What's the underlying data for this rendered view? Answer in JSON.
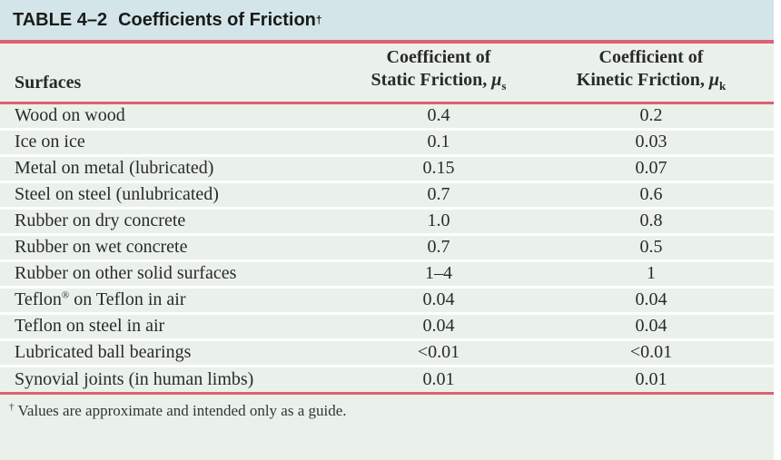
{
  "colors": {
    "title_bg": "#d3e5e8",
    "body_bg": "#eaf1ea",
    "rule": "#df6170",
    "separator": "#ffffff",
    "text": "#2a2a2a"
  },
  "title": {
    "label": "TABLE 4–2",
    "text": "Coefficients of Friction",
    "dagger": "†"
  },
  "header": {
    "surfaces": "Surfaces",
    "static": {
      "line1": "Coefficient of",
      "line2": "Static Friction, ",
      "symbol": "μ",
      "subscript": "s"
    },
    "kinetic": {
      "line1": "Coefficient of",
      "line2": "Kinetic Friction, ",
      "symbol": "μ",
      "subscript": "k"
    }
  },
  "rows": [
    {
      "surface": "Wood on wood",
      "static": "0.4",
      "kinetic": "0.2"
    },
    {
      "surface": "Ice on ice",
      "static": "0.1",
      "kinetic": "0.03"
    },
    {
      "surface": "Metal on metal (lubricated)",
      "static": "0.15",
      "kinetic": "0.07"
    },
    {
      "surface": "Steel on steel (unlubricated)",
      "static": "0.7",
      "kinetic": "0.6"
    },
    {
      "surface": "Rubber on dry concrete",
      "static": "1.0",
      "kinetic": "0.8"
    },
    {
      "surface": "Rubber on wet concrete",
      "static": "0.7",
      "kinetic": "0.5"
    },
    {
      "surface": "Rubber on other solid surfaces",
      "static": "1–4",
      "kinetic": "1"
    },
    {
      "surface": "Teflon",
      "surface_sup": "®",
      "surface_rest": " on Teflon in air",
      "static": "0.04",
      "kinetic": "0.04"
    },
    {
      "surface": "Teflon on steel in air",
      "static": "0.04",
      "kinetic": "0.04"
    },
    {
      "surface": "Lubricated ball bearings",
      "static": "<0.01",
      "kinetic": "<0.01"
    },
    {
      "surface": "Synovial joints (in human limbs)",
      "static": "0.01",
      "kinetic": "0.01"
    }
  ],
  "footnote": {
    "dagger": "†",
    "text": "Values are approximate and intended only as a guide."
  }
}
